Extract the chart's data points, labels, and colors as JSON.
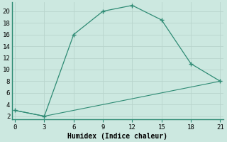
{
  "line1_x": [
    0,
    3,
    6,
    9,
    12,
    15,
    18,
    21
  ],
  "line1_y": [
    3,
    2,
    16,
    20,
    21,
    18.5,
    11,
    8
  ],
  "line2_x": [
    0,
    3,
    21
  ],
  "line2_y": [
    3,
    2,
    8
  ],
  "color": "#2e8b74",
  "bg_color": "#cce8e0",
  "grid_color": "#b8d4cc",
  "spine_color": "#2e8b74",
  "xlabel": "Humidex (Indice chaleur)",
  "xticks": [
    0,
    3,
    6,
    9,
    12,
    15,
    18,
    21
  ],
  "yticks": [
    2,
    4,
    6,
    8,
    10,
    12,
    14,
    16,
    18,
    20
  ],
  "xlim": [
    -0.3,
    21.3
  ],
  "ylim": [
    1.5,
    21.5
  ],
  "figsize": [
    3.2,
    2.0
  ],
  "dpi": 100
}
